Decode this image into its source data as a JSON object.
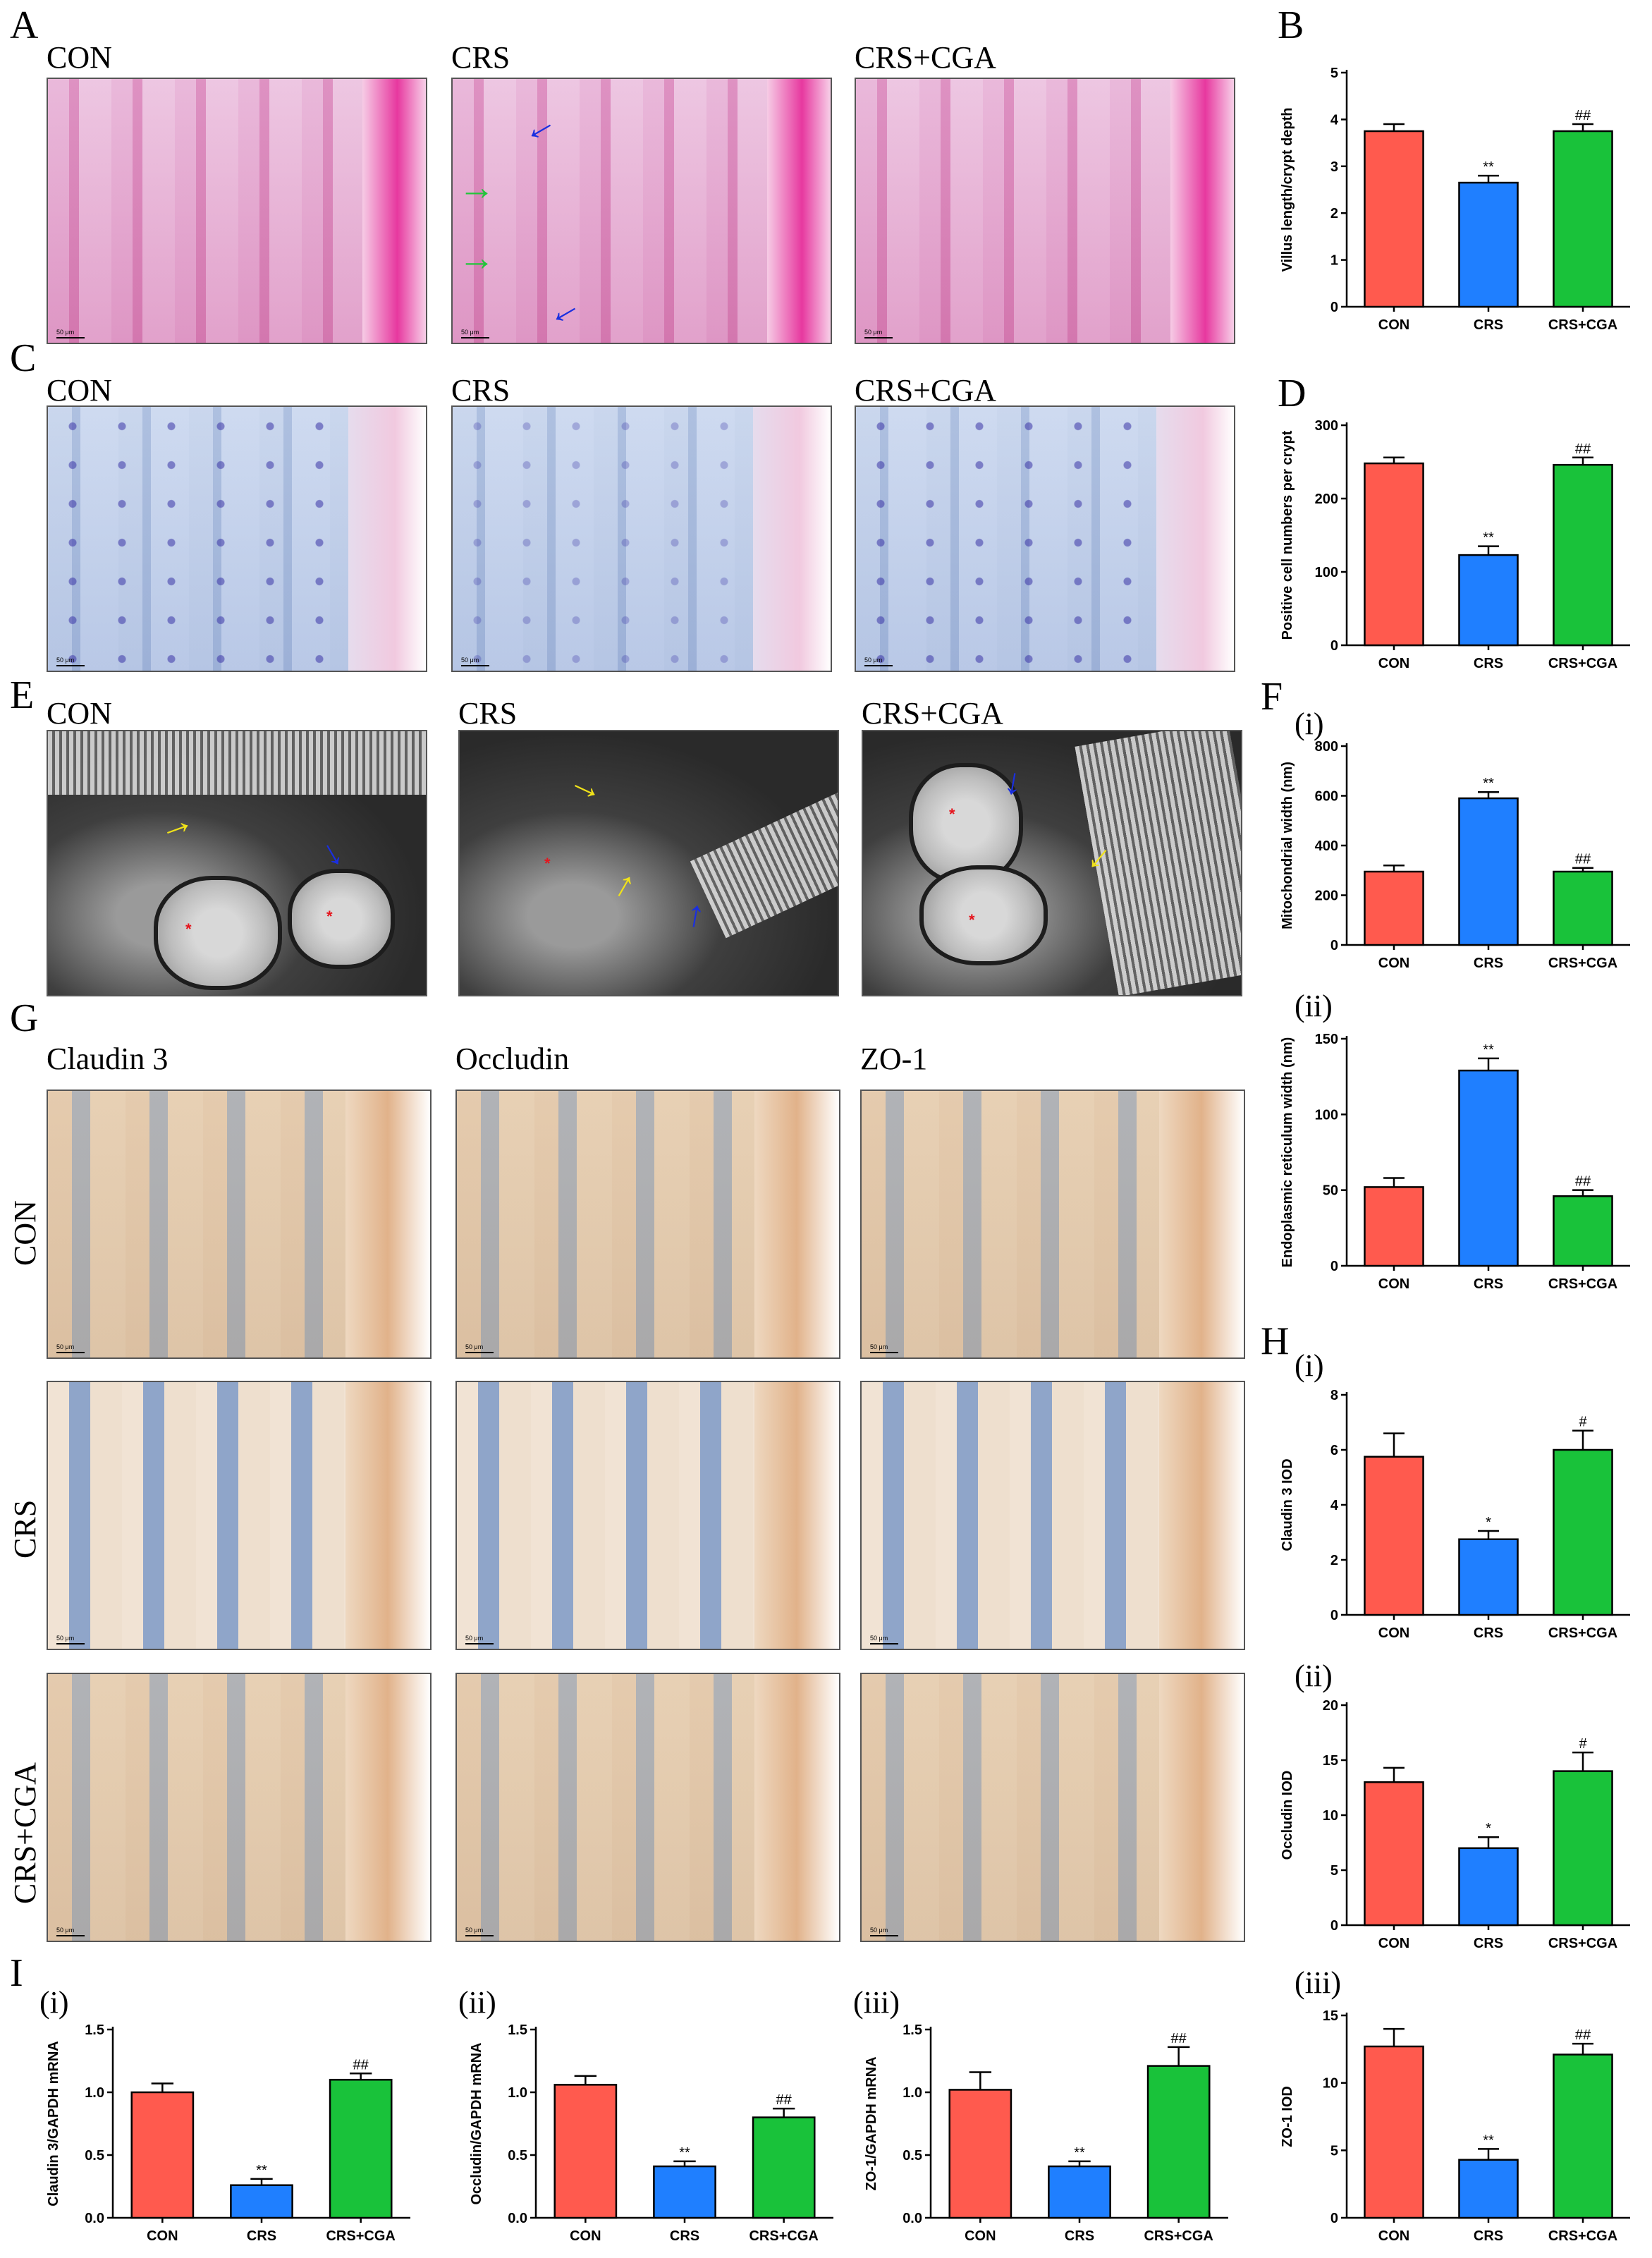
{
  "panels": {
    "A": {
      "letter": "A",
      "captions": [
        "CON",
        "CRS",
        "CRS+CGA"
      ]
    },
    "C": {
      "letter": "C",
      "captions": [
        "CON",
        "CRS",
        "CRS+CGA"
      ]
    },
    "E": {
      "letter": "E",
      "captions": [
        "CON",
        "CRS",
        "CRS+CGA"
      ]
    },
    "G": {
      "letter": "G",
      "captions": [
        "Claudin 3",
        "Occludin",
        "ZO-1"
      ],
      "rows": [
        "CON",
        "CRS",
        "CRS+CGA"
      ]
    },
    "B": {
      "letter": "B"
    },
    "D": {
      "letter": "D"
    },
    "F": {
      "letter": "F",
      "sub": [
        "(i)",
        "(ii)"
      ]
    },
    "H": {
      "letter": "H",
      "sub": [
        "(i)",
        "(ii)",
        "(iii)"
      ]
    },
    "I": {
      "letter": "I",
      "sub": [
        "(i)",
        "(ii)",
        "(iii)"
      ]
    }
  },
  "scale_bar": "50 μm",
  "colors": {
    "CON": "#ff5a4e",
    "CRS": "#1f7fff",
    "CRS+CGA": "#19c23a"
  },
  "chart_data": [
    {
      "id": "B",
      "type": "bar",
      "categories": [
        "CON",
        "CRS",
        "CRS+CGA"
      ],
      "values": [
        3.75,
        2.65,
        3.75
      ],
      "errors": [
        0.15,
        0.15,
        0.15
      ],
      "sig": [
        "",
        "**",
        "##"
      ],
      "ylabel": "Villus length/crypt depth",
      "ylim": [
        0,
        5
      ],
      "ticks": [
        0,
        1,
        2,
        3,
        4,
        5
      ]
    },
    {
      "id": "D",
      "type": "bar",
      "categories": [
        "CON",
        "CRS",
        "CRS+CGA"
      ],
      "values": [
        248,
        123,
        246
      ],
      "errors": [
        8,
        12,
        10
      ],
      "sig": [
        "",
        "**",
        "##"
      ],
      "ylabel": "Positive cell numbers per crypt",
      "ylim": [
        0,
        300
      ],
      "ticks": [
        0,
        100,
        200,
        300
      ]
    },
    {
      "id": "Fi",
      "type": "bar",
      "categories": [
        "CON",
        "CRS",
        "CRS+CGA"
      ],
      "values": [
        295,
        590,
        295
      ],
      "errors": [
        25,
        25,
        15
      ],
      "sig": [
        "",
        "**",
        "##"
      ],
      "ylabel": "Mitochondrial width (nm)",
      "ylim": [
        0,
        800
      ],
      "ticks": [
        0,
        200,
        400,
        600,
        800
      ]
    },
    {
      "id": "Fii",
      "type": "bar",
      "categories": [
        "CON",
        "CRS",
        "CRS+CGA"
      ],
      "values": [
        52,
        129,
        46
      ],
      "errors": [
        6,
        8,
        4
      ],
      "sig": [
        "",
        "**",
        "##"
      ],
      "ylabel": "Endoplasmic reticulum width (nm)",
      "ylim": [
        0,
        150
      ],
      "ticks": [
        0,
        50,
        100,
        150
      ]
    },
    {
      "id": "Hi",
      "type": "bar",
      "categories": [
        "CON",
        "CRS",
        "CRS+CGA"
      ],
      "values": [
        5.75,
        2.75,
        6.0
      ],
      "errors": [
        0.85,
        0.3,
        0.7
      ],
      "sig": [
        "",
        "*",
        "#"
      ],
      "ylabel": "Claudin 3 IOD",
      "ylim": [
        0,
        8
      ],
      "ticks": [
        0,
        2,
        4,
        6,
        8
      ]
    },
    {
      "id": "Hii",
      "type": "bar",
      "categories": [
        "CON",
        "CRS",
        "CRS+CGA"
      ],
      "values": [
        13.0,
        7.0,
        14.0
      ],
      "errors": [
        1.3,
        1.0,
        1.7
      ],
      "sig": [
        "",
        "*",
        "#"
      ],
      "ylabel": "Occludin IOD",
      "ylim": [
        0,
        20
      ],
      "ticks": [
        0,
        5,
        10,
        15,
        20
      ]
    },
    {
      "id": "Hiii",
      "type": "bar",
      "categories": [
        "CON",
        "CRS",
        "CRS+CGA"
      ],
      "values": [
        12.7,
        4.3,
        12.1
      ],
      "errors": [
        1.3,
        0.8,
        0.8
      ],
      "sig": [
        "",
        "**",
        "##"
      ],
      "ylabel": "ZO-1 IOD",
      "ylim": [
        0,
        15
      ],
      "ticks": [
        0,
        5,
        10,
        15
      ]
    },
    {
      "id": "Ii",
      "type": "bar",
      "categories": [
        "CON",
        "CRS",
        "CRS+CGA"
      ],
      "values": [
        1.0,
        0.26,
        1.1
      ],
      "errors": [
        0.07,
        0.05,
        0.05
      ],
      "sig": [
        "",
        "**",
        "##"
      ],
      "ylabel": "Claudin 3/GAPDH mRNA",
      "ylim": [
        0,
        1.5
      ],
      "ticks": [
        0.0,
        0.5,
        1.0,
        1.5
      ]
    },
    {
      "id": "Iii",
      "type": "bar",
      "categories": [
        "CON",
        "CRS",
        "CRS+CGA"
      ],
      "values": [
        1.06,
        0.41,
        0.8
      ],
      "errors": [
        0.07,
        0.04,
        0.07
      ],
      "sig": [
        "",
        "**",
        "##"
      ],
      "ylabel": "Occludin/GAPDH mRNA",
      "ylim": [
        0,
        1.5
      ],
      "ticks": [
        0.0,
        0.5,
        1.0,
        1.5
      ]
    },
    {
      "id": "Iiii",
      "type": "bar",
      "categories": [
        "CON",
        "CRS",
        "CRS+CGA"
      ],
      "values": [
        1.02,
        0.41,
        1.21
      ],
      "errors": [
        0.14,
        0.04,
        0.15
      ],
      "sig": [
        "",
        "**",
        "##"
      ],
      "ylabel": "ZO-1/GAPDH mRNA",
      "ylim": [
        0,
        1.5
      ],
      "ticks": [
        0.0,
        0.5,
        1.0,
        1.5
      ]
    }
  ]
}
